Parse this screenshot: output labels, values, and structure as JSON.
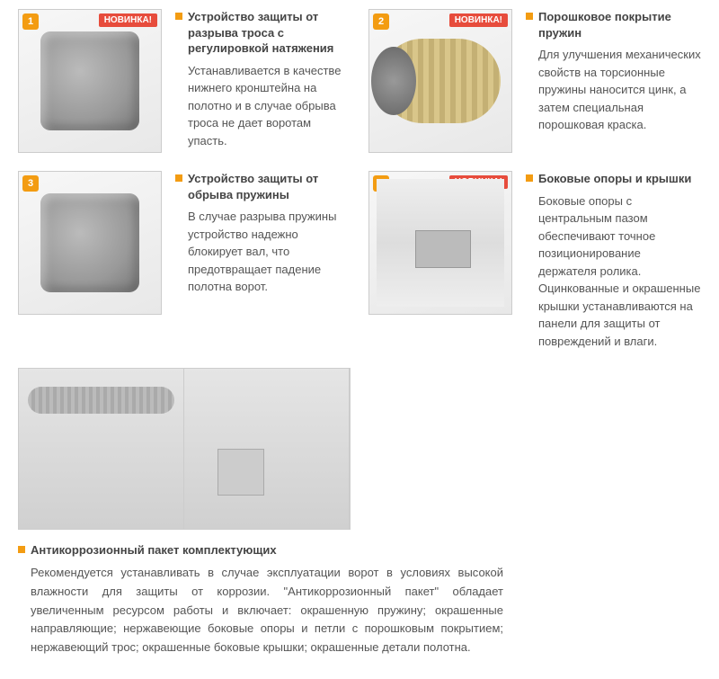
{
  "colors": {
    "accent": "#f39c12",
    "badge_bg": "#e74c3c",
    "text": "#333333",
    "desc": "#555555",
    "border": "#cccccc"
  },
  "badge_new": "НОВИНКА!",
  "items": [
    {
      "num": "1",
      "has_new": true,
      "title": "Устройство защиты от разрыва троса с регулировкой натяжения",
      "desc": "Устанавливается в качестве нижнего кронштейна на полотно и в случае обрыва троса не дает воротам упасть."
    },
    {
      "num": "2",
      "has_new": true,
      "title": "Порошковое покрытие пружин",
      "desc": "Для улучшения механических свойств на торсионные пружины наносится цинк, а затем специальная порошковая краска."
    },
    {
      "num": "3",
      "has_new": false,
      "title": "Устройство защиты от обрыва пружины",
      "desc": "В случае разрыва пружины устройство надежно блокирует вал, что предотвращает падение полотна ворот."
    },
    {
      "num": "4",
      "has_new": true,
      "title": "Боковые опоры и крышки",
      "desc": "Боковые опоры с центральным пазом обеспечивают точное позиционирование держателя ролика. Оцинкованные и окрашенные крышки устанавливаются на панели для защиты от повреждений и влаги."
    }
  ],
  "bottom": {
    "has_new": true,
    "title": "Антикоррозионный пакет комплектующих",
    "desc": "Рекомендуется устанавливать в случае эксплуатации ворот в условиях высокой влажности для защиты от коррозии. \"Антикоррозионный пакет\" обладает увеличенным ресурсом работы и включает: окрашенную пружину; окрашенные направляющие; нержавеющие боковые опоры и петли с порошковым покрытием; нержавеющий трос; окрашенные боковые крышки; окрашенные детали полотна."
  }
}
